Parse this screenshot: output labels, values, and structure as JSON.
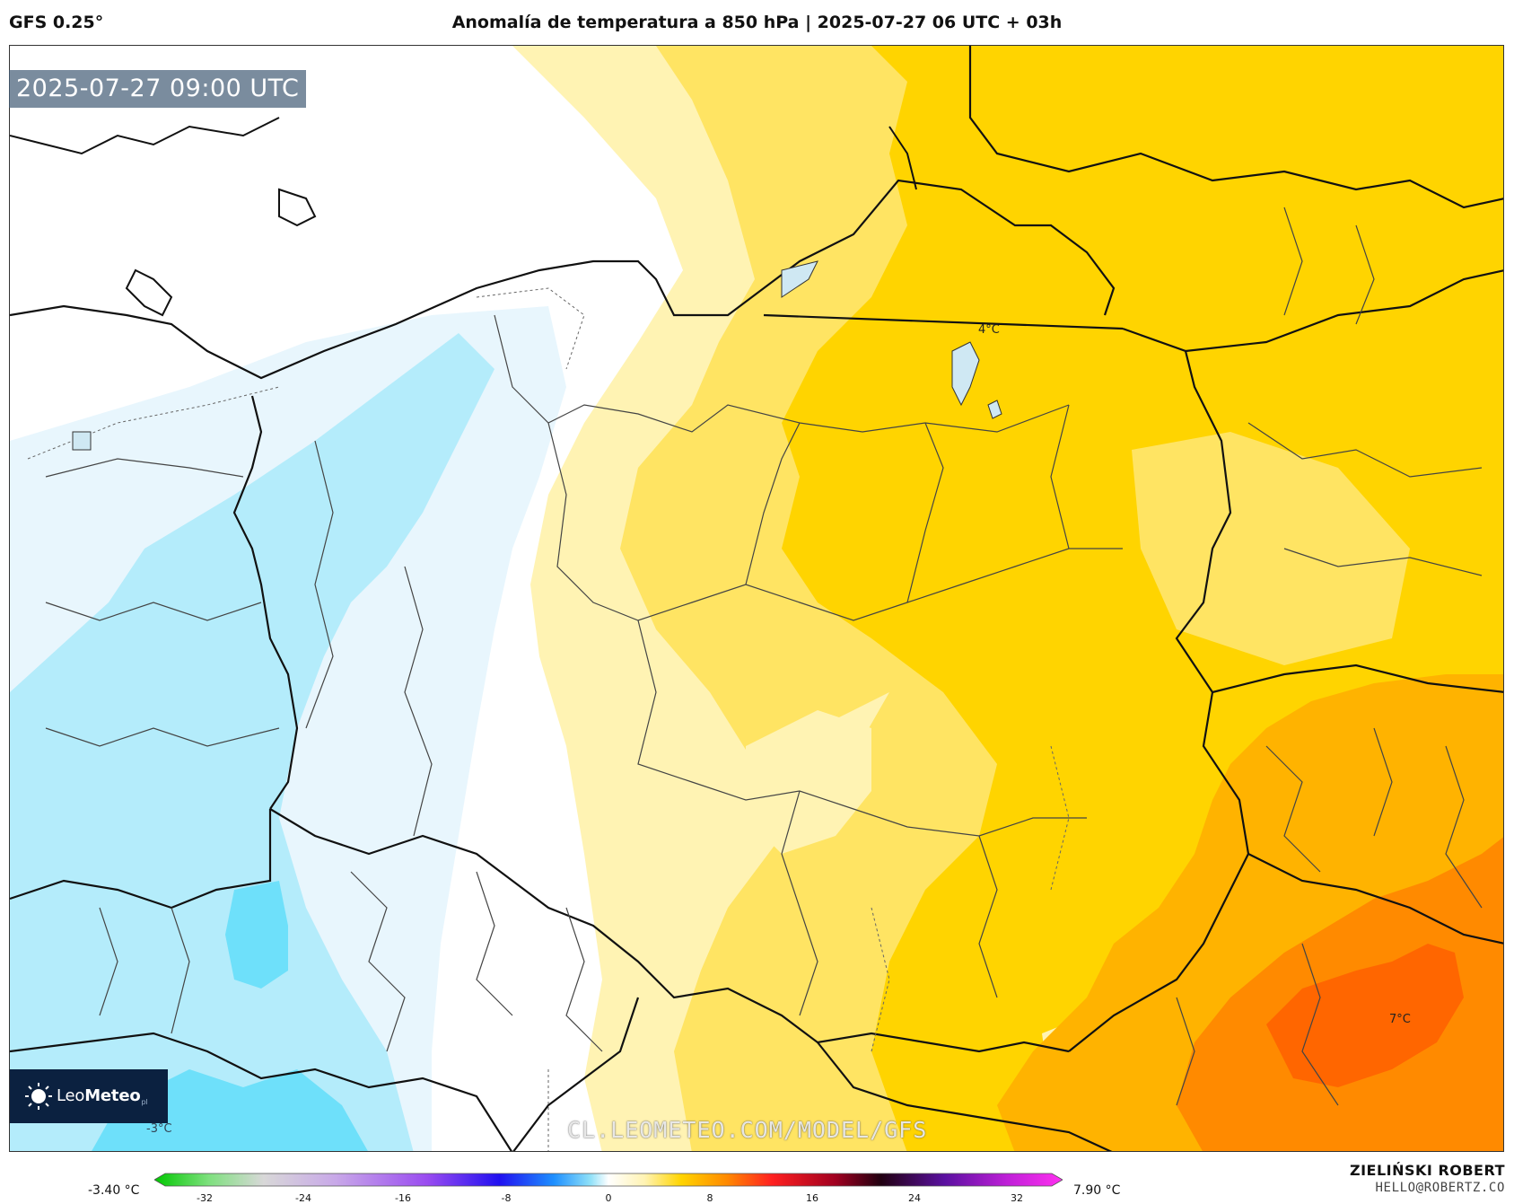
{
  "header": {
    "model": "GFS 0.25°",
    "title": "Anomalía de temperatura a 850 hPa | 2025-07-27 06 UTC + 03h"
  },
  "map": {
    "valid_time": "2025-07-27 09:00 UTC",
    "labels": [
      {
        "text": "4°C"
      },
      {
        "text": "7°C"
      },
      {
        "text": "-3°C"
      }
    ],
    "watermark": "CL.LEOMETEO.COM/MODEL/GFS",
    "brand": {
      "part1": "Leo",
      "part2": "Meteo",
      "suffix": "pl"
    },
    "colors": {
      "cold_light": "#e8f6fd",
      "cold_mid": "#b4ecfb",
      "cold_strong": "#6ee0fa",
      "neutral": "#ffffff",
      "warm_pale": "#fff3b3",
      "warm_light": "#ffe463",
      "warm_mid": "#ffd400",
      "warm_orange": "#ffb300",
      "warm_dark": "#ff8a00",
      "warm_hot": "#ff6600"
    }
  },
  "legend": {
    "min_label": "-3.40 °C",
    "max_label": "7.90 °C",
    "ticks": [
      "-32",
      "-24",
      "-16",
      "-8",
      "0",
      "8",
      "16",
      "24",
      "32"
    ],
    "range": [
      -36,
      36
    ]
  },
  "author": {
    "name": "ZIELIŃSKI ROBERT",
    "email": "HELLO@ROBERTZ.CO"
  }
}
